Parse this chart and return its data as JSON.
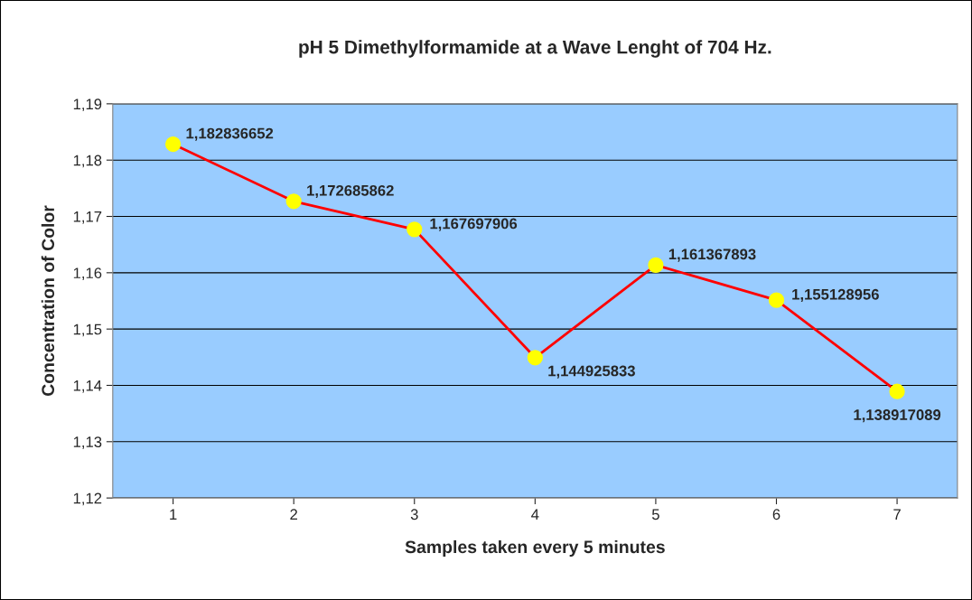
{
  "chart_data": {
    "type": "line",
    "title": "pH 5 Dimethylformamide at a Wave Lenght of 704 Hz.",
    "xlabel": "Samples taken every 5 minutes",
    "ylabel": "Concentration of Color",
    "categories": [
      "1",
      "2",
      "3",
      "4",
      "5",
      "6",
      "7"
    ],
    "series": [
      {
        "color": "#ff0000",
        "colors": [
          "#ffff00",
          "#ffff00",
          "#ffff00",
          "#ffff00",
          "#ffff00",
          "#ffff00",
          "#ffff00"
        ],
        "values": [
          1.182836652,
          1.172685862,
          1.167697906,
          1.144925833,
          1.161367893,
          1.155128956,
          1.138917089
        ],
        "value_labels": [
          "1,182836652",
          "1,172685862",
          "1,167697906",
          "1,144925833",
          "1,161367893",
          "1,155128956",
          "1,138917089"
        ]
      }
    ],
    "ylim": [
      1.12,
      1.19
    ],
    "yticks": [
      {
        "value": 1.12,
        "label": "1,12"
      },
      {
        "value": 1.13,
        "label": "1,13"
      },
      {
        "value": 1.14,
        "label": "1,14"
      },
      {
        "value": 1.15,
        "label": "1,15"
      },
      {
        "value": 1.16,
        "label": "1,16"
      },
      {
        "value": 1.17,
        "label": "1,17"
      },
      {
        "value": 1.18,
        "label": "1,18"
      },
      {
        "value": 1.19,
        "label": "1,19"
      }
    ],
    "grid": "y",
    "marker": "circle",
    "line_style": "solid"
  }
}
